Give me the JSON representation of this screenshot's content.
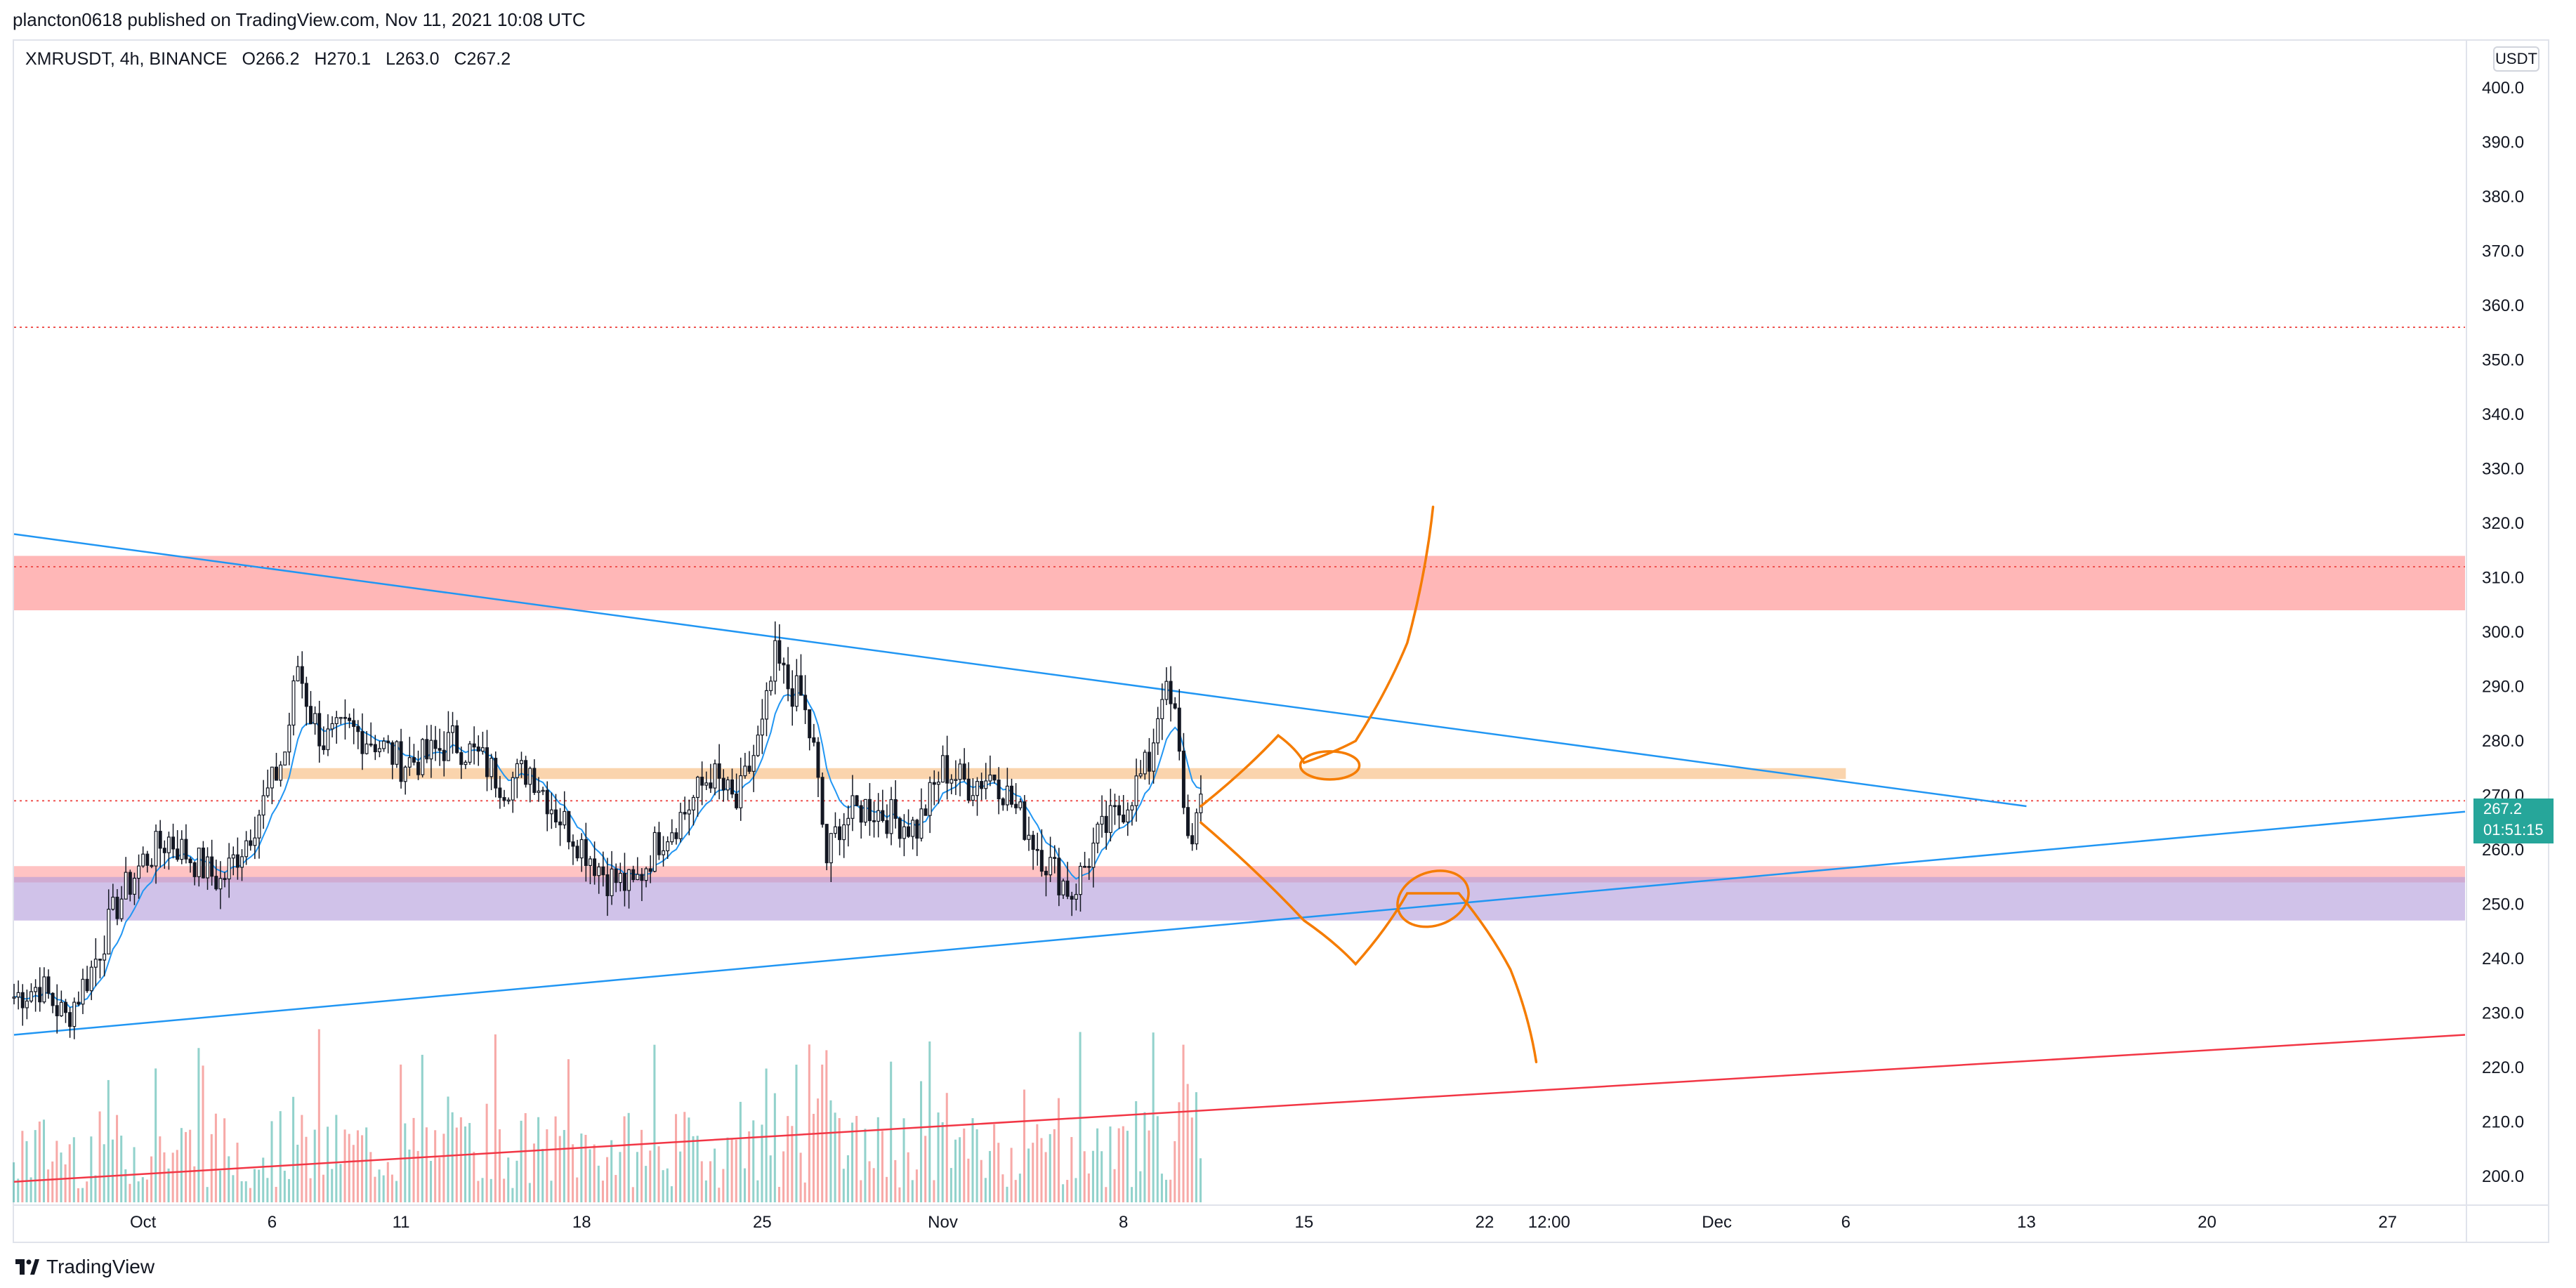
{
  "header": {
    "text": "plancton0618 published on TradingView.com, Nov 11, 2021 10:08 UTC"
  },
  "symbol": {
    "name": "XMRUSDT, 4h, BINANCE",
    "open": "O266.2",
    "high": "H270.1",
    "low": "L263.0",
    "close": "C267.2"
  },
  "currency": "USDT",
  "last_price": {
    "value": "267.2",
    "countdown": "01:51:15"
  },
  "footer": {
    "brand": "TradingView"
  },
  "colors": {
    "up": "#26a69a",
    "down": "#ef5350",
    "ma": "#2196f3",
    "trendline": "#2196f3",
    "support_line": "#f23645",
    "drawing": "#f57c00",
    "resistance_zone": "#ff8a8a",
    "orange_zone": "#f7b97a",
    "support_zone_pink": "#ff9e9e",
    "support_zone_purple": "#b39ddb",
    "level_dotted": "#ef5350"
  },
  "chart_data": {
    "type": "candlestick",
    "symbol": "XMRUSDT",
    "interval": "4h",
    "exchange": "BINANCE",
    "y_axis": {
      "ticks": [
        400,
        390,
        380,
        370,
        360,
        350,
        340,
        330,
        320,
        310,
        300,
        290,
        280,
        270,
        260,
        250,
        240,
        230,
        220,
        210,
        200
      ],
      "tick_labels": [
        "400.0",
        "390.0",
        "380.0",
        "370.0",
        "360.0",
        "350.0",
        "340.0",
        "330.0",
        "320.0",
        "310.0",
        "300.0",
        "290.0",
        "280.0",
        "270.0",
        "260.0",
        "250.0",
        "240.0",
        "230.0",
        "220.0",
        "210.0",
        "200.0"
      ],
      "range": [
        195,
        405
      ]
    },
    "x_axis": {
      "tick_labels": [
        "Oct",
        "6",
        "11",
        "18",
        "25",
        "Nov",
        "8",
        "15",
        "22",
        "12:00",
        "Dec",
        "6",
        "13",
        "20",
        "27"
      ],
      "tick_dates": [
        "2021-10-01",
        "2021-10-06",
        "2021-10-11",
        "2021-10-18",
        "2021-10-25",
        "2021-11-01",
        "2021-11-08",
        "2021-11-15",
        "2021-11-22",
        "2021-11-24 12:00",
        "2021-12-01",
        "2021-12-06",
        "2021-12-13",
        "2021-12-20",
        "2021-12-27"
      ],
      "range": [
        "2021-09-26",
        "2021-12-30"
      ]
    },
    "key_points": [
      {
        "date": "2021-09-26",
        "price": 233
      },
      {
        "date": "2021-09-27",
        "price": 235
      },
      {
        "date": "2021-09-28",
        "price": 229
      },
      {
        "date": "2021-09-29",
        "price": 238
      },
      {
        "date": "2021-09-30",
        "price": 250
      },
      {
        "date": "2021-10-01",
        "price": 258
      },
      {
        "date": "2021-10-02",
        "price": 262
      },
      {
        "date": "2021-10-03",
        "price": 258
      },
      {
        "date": "2021-10-04",
        "price": 254
      },
      {
        "date": "2021-10-05",
        "price": 262
      },
      {
        "date": "2021-10-06",
        "price": 272
      },
      {
        "date": "2021-10-06 12:00",
        "price": 278
      },
      {
        "date": "2021-10-07",
        "price": 294
      },
      {
        "date": "2021-10-07 12:00",
        "price": 285
      },
      {
        "date": "2021-10-08",
        "price": 280
      },
      {
        "date": "2021-10-09",
        "price": 282
      },
      {
        "date": "2021-10-10",
        "price": 280
      },
      {
        "date": "2021-10-11",
        "price": 276
      },
      {
        "date": "2021-10-12",
        "price": 277
      },
      {
        "date": "2021-10-13",
        "price": 280
      },
      {
        "date": "2021-10-14",
        "price": 277
      },
      {
        "date": "2021-10-15",
        "price": 272
      },
      {
        "date": "2021-10-16",
        "price": 275
      },
      {
        "date": "2021-10-17",
        "price": 267
      },
      {
        "date": "2021-10-18",
        "price": 261
      },
      {
        "date": "2021-10-19",
        "price": 255
      },
      {
        "date": "2021-10-20",
        "price": 253
      },
      {
        "date": "2021-10-21",
        "price": 262
      },
      {
        "date": "2021-10-22",
        "price": 267
      },
      {
        "date": "2021-10-23",
        "price": 274
      },
      {
        "date": "2021-10-24",
        "price": 268
      },
      {
        "date": "2021-10-25",
        "price": 282
      },
      {
        "date": "2021-10-25 12:00",
        "price": 295
      },
      {
        "date": "2021-10-26",
        "price": 290
      },
      {
        "date": "2021-10-26 12:00",
        "price": 288
      },
      {
        "date": "2021-10-27",
        "price": 278
      },
      {
        "date": "2021-10-27 12:00",
        "price": 258
      },
      {
        "date": "2021-10-28",
        "price": 265
      },
      {
        "date": "2021-10-29",
        "price": 268
      },
      {
        "date": "2021-10-30",
        "price": 266
      },
      {
        "date": "2021-10-31",
        "price": 264
      },
      {
        "date": "2021-11-01",
        "price": 275
      },
      {
        "date": "2021-11-02",
        "price": 272
      },
      {
        "date": "2021-11-03",
        "price": 274
      },
      {
        "date": "2021-11-04",
        "price": 266
      },
      {
        "date": "2021-11-05",
        "price": 258
      },
      {
        "date": "2021-11-06",
        "price": 252
      },
      {
        "date": "2021-11-07",
        "price": 262
      },
      {
        "date": "2021-11-08",
        "price": 268
      },
      {
        "date": "2021-11-09",
        "price": 276
      },
      {
        "date": "2021-11-09 12:00",
        "price": 290
      },
      {
        "date": "2021-11-10",
        "price": 284
      },
      {
        "date": "2021-11-10 12:00",
        "price": 262
      },
      {
        "date": "2021-11-11",
        "price": 267
      }
    ],
    "volume_relative": "bars at bottom, coloured by candle direction",
    "moving_average": {
      "color": "#2196f3",
      "note": "short moving average following price"
    },
    "zones": [
      {
        "name": "resistance",
        "from": 304,
        "to": 314,
        "color": "#ff8a8a"
      },
      {
        "name": "pivot",
        "from": 273,
        "to": 275,
        "start": "2021-10-06",
        "end": "2021-12-06",
        "color": "#f7b97a"
      },
      {
        "name": "support-upper",
        "from": 254,
        "to": 257,
        "color": "#ff9e9e"
      },
      {
        "name": "support-lower",
        "from": 247,
        "to": 255,
        "color": "#b39ddb"
      }
    ],
    "horizontal_levels": [
      356,
      312,
      269
    ],
    "trendlines": [
      {
        "name": "descending-resistance",
        "from": {
          "date": "2021-09-26",
          "price": 318
        },
        "to": {
          "date": "2021-12-13",
          "price": 268
        },
        "color": "#2196f3"
      },
      {
        "name": "ascending-support",
        "from": {
          "date": "2021-09-26",
          "price": 226
        },
        "to": {
          "date": "2021-12-30",
          "price": 267
        },
        "color": "#2196f3"
      },
      {
        "name": "long-support",
        "from": {
          "date": "2021-09-26",
          "price": 199
        },
        "to": {
          "date": "2021-12-30",
          "price": 226
        },
        "color": "#f23645"
      }
    ],
    "drawings": [
      {
        "name": "bullish-scenario",
        "color": "#f57c00",
        "points": [
          {
            "date": "2021-11-11",
            "price": 268
          },
          {
            "date": "2021-11-14",
            "price": 281
          },
          {
            "date": "2021-11-15",
            "price": 276
          },
          {
            "date": "2021-11-17",
            "price": 280
          },
          {
            "date": "2021-11-19",
            "price": 298
          },
          {
            "date": "2021-11-20",
            "price": 323
          }
        ]
      },
      {
        "name": "bearish-scenario",
        "color": "#f57c00",
        "points": [
          {
            "date": "2021-11-11",
            "price": 265
          },
          {
            "date": "2021-11-15",
            "price": 247
          },
          {
            "date": "2021-11-17",
            "price": 239
          },
          {
            "date": "2021-11-19",
            "price": 252
          },
          {
            "date": "2021-11-21",
            "price": 252
          },
          {
            "date": "2021-11-23",
            "price": 238
          },
          {
            "date": "2021-11-24",
            "price": 221
          }
        ]
      }
    ]
  }
}
